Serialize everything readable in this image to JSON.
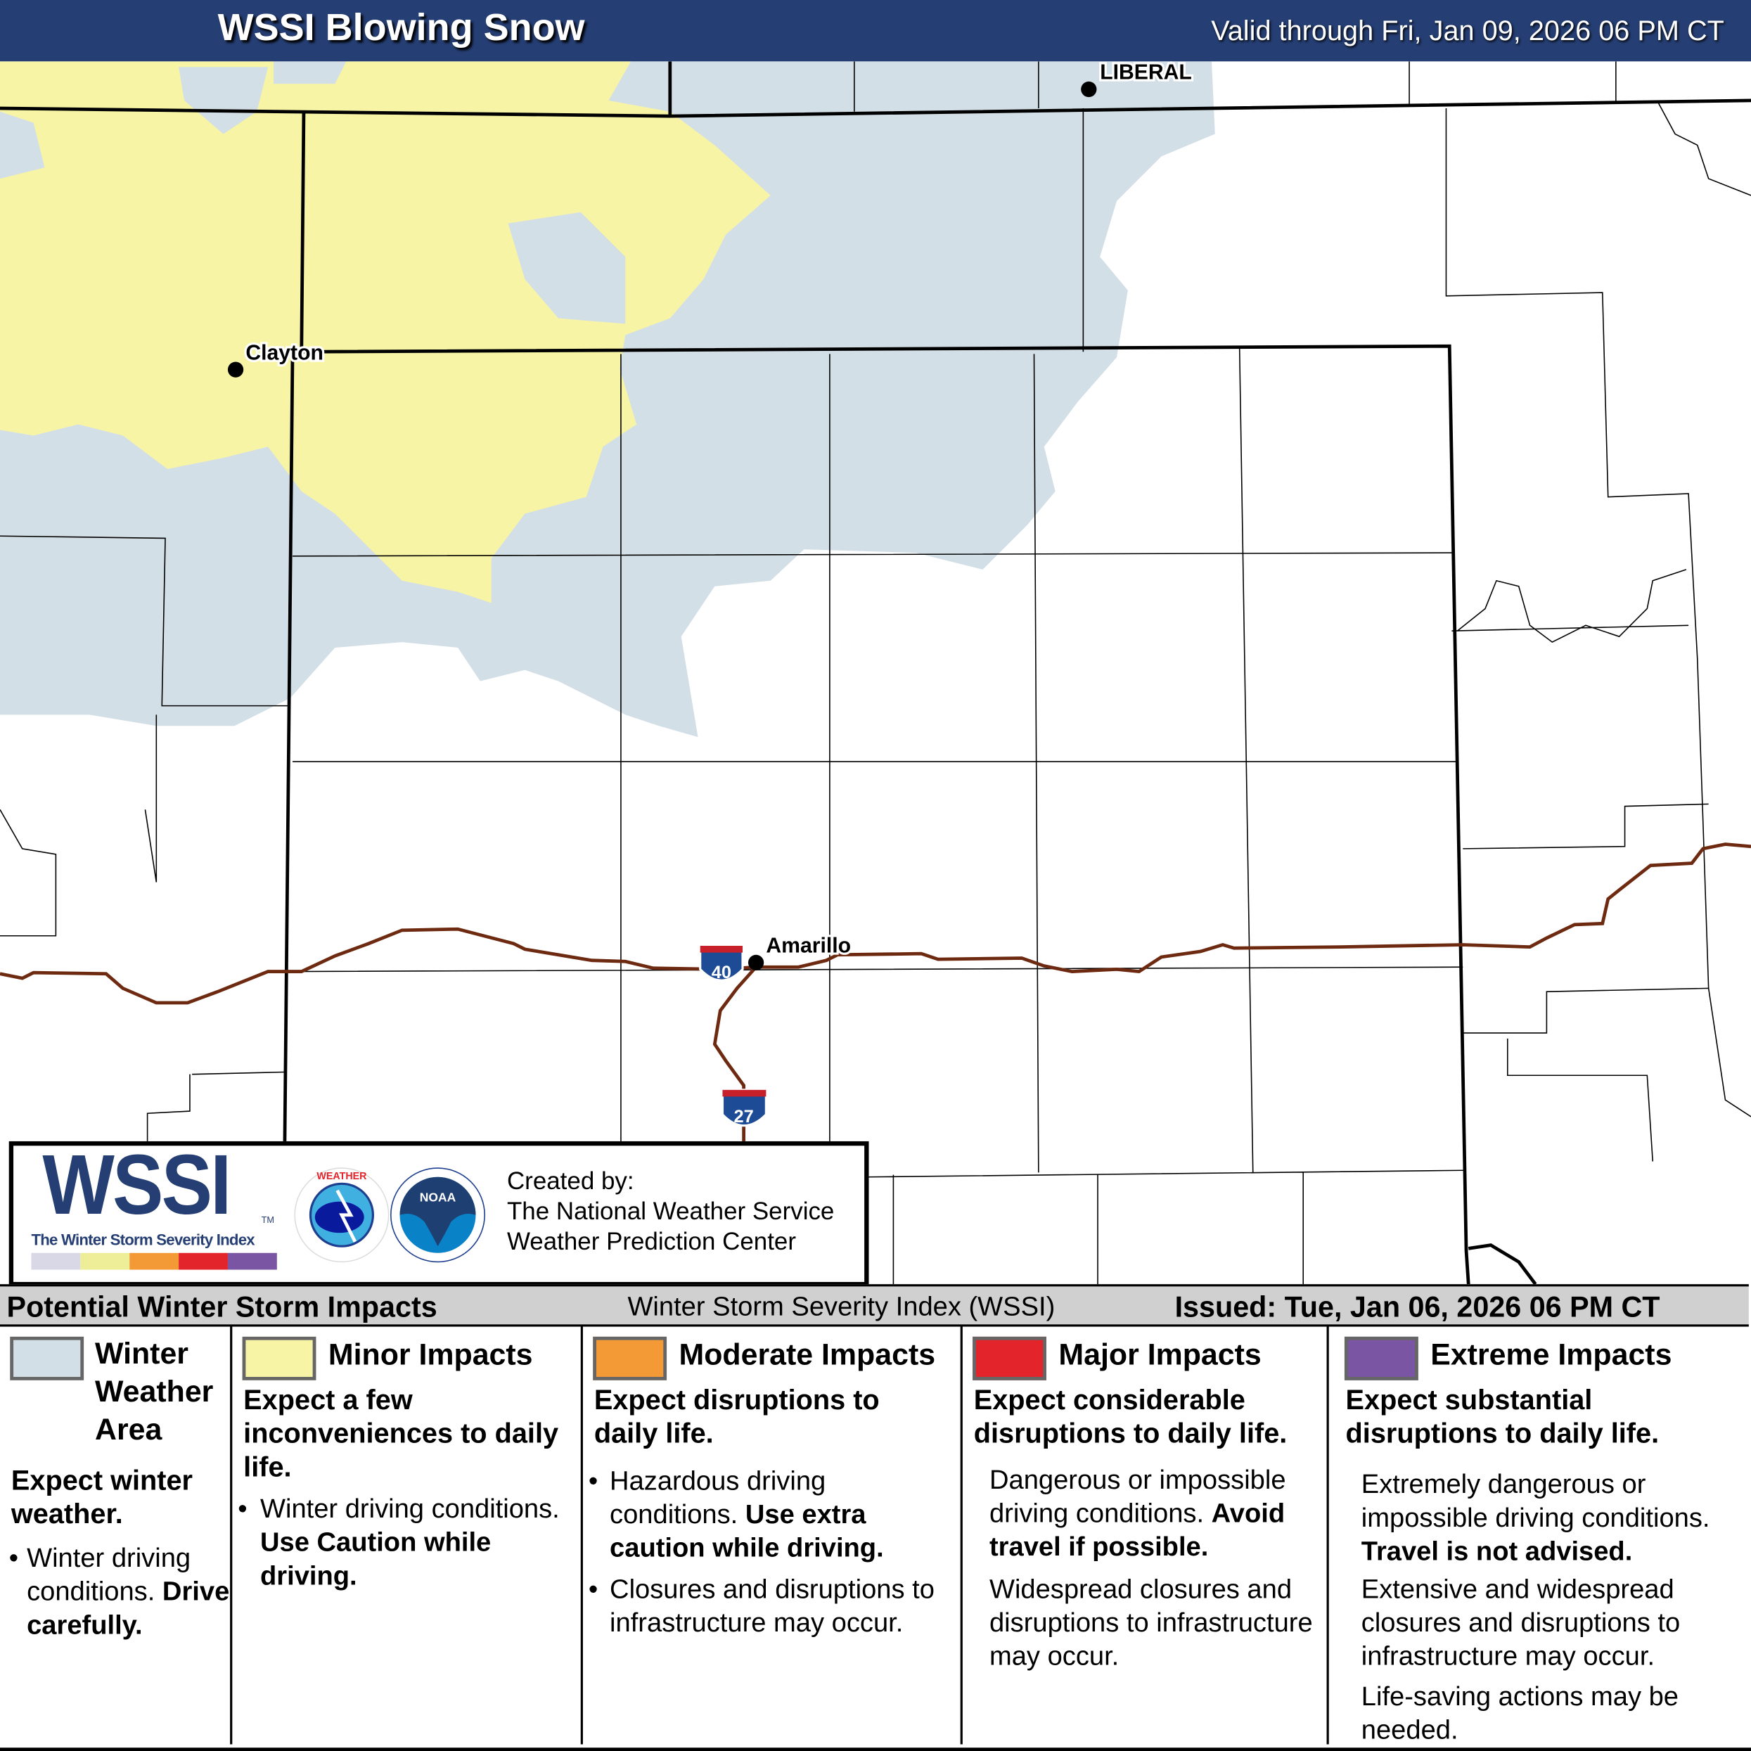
{
  "header": {
    "title": "WSSI Blowing Snow",
    "valid": "Valid through Fri, Jan 09, 2026 06 PM CT",
    "background": "#253e73"
  },
  "map": {
    "cities": [
      {
        "name": "LIBERAL"
      },
      {
        "name": "Clayton"
      },
      {
        "name": "Amarillo"
      }
    ],
    "shields": [
      {
        "label": "40"
      },
      {
        "label": "27"
      }
    ],
    "colors": {
      "winter_weather_area": "#d3dfe6",
      "minor": "#f8f4a6",
      "interstate": "#7a2a0e"
    }
  },
  "logo": {
    "wssi": "WSSI",
    "tm": "TM",
    "subtitle": "The Winter Storm Severity Index",
    "bar_colors": [
      "#d8d8e6",
      "#eeee99",
      "#f39a37",
      "#e3242b",
      "#7a55a3"
    ],
    "nws_text": "NATIONAL WEATHER SERVICE",
    "noaa_text": "NOAA",
    "created_by": "Created by:",
    "org1": "The National Weather Service",
    "org2": "Weather Prediction Center"
  },
  "legend": {
    "left_title": "Potential Winter Storm Impacts",
    "center_title": "Winter Storm Severity Index (WSSI)",
    "issued": "Issued: Tue, Jan 06, 2026 06 PM CT",
    "categories": [
      {
        "name_lines": [
          "Winter",
          "Weather",
          "Area"
        ],
        "color": "#d3dfe6",
        "headline": "Expect winter weather.",
        "b1": "Winter driving conditions.",
        "b1_bold": "Drive carefully."
      },
      {
        "name": "Minor Impacts",
        "color": "#f8f4a6",
        "headline": "Expect a few inconveniences to daily life.",
        "b1": "Winter driving conditions.",
        "b1_bold": "Use Caution while driving."
      },
      {
        "name": "Moderate Impacts",
        "color": "#f39a37",
        "headline": "Expect disruptions to daily life.",
        "b1": "Hazardous driving conditions.",
        "b1_bold": "Use extra caution while driving.",
        "b2": "Closures and disruptions to infrastructure may occur."
      },
      {
        "name": "Major Impacts",
        "color": "#e3242b",
        "headline": "Expect considerable disruptions to daily life.",
        "p1": "Dangerous or impossible driving conditions.",
        "p1_bold": "Avoid travel if possible.",
        "p2": "Widespread closures and disruptions to infrastructure may occur."
      },
      {
        "name": "Extreme Impacts",
        "color": "#7a55a3",
        "headline": "Expect substantial disruptions to daily life.",
        "p1": "Extremely dangerous or impossible driving conditions.",
        "p1_bold": "Travel is not advised.",
        "p2": "Extensive and widespread closures and disruptions to infrastructure may occur.",
        "p3": "Life-saving actions may be needed."
      }
    ]
  }
}
